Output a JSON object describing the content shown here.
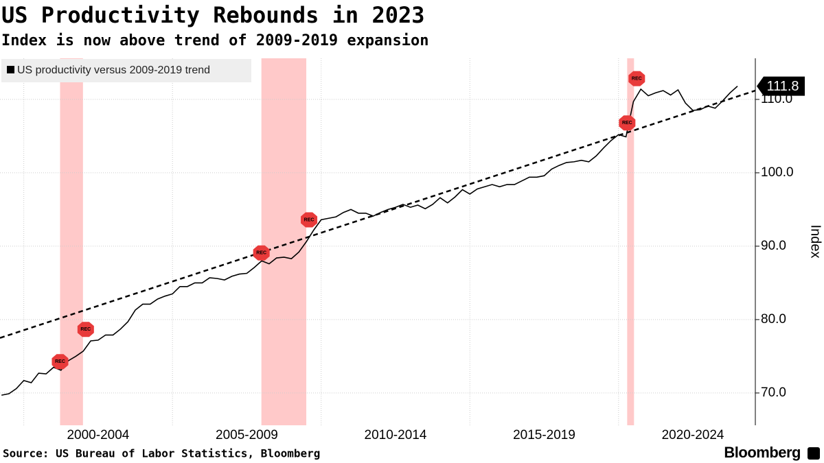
{
  "chart_data": {
    "type": "line",
    "title": "US Productivity Rebounds in 2023",
    "subtitle": "Index is now above trend of 2009-2019 expansion",
    "source": "Source: US Bureau of Labor Statistics, Bloomberg",
    "brand": "Bloomberg",
    "y_axis_label": "Index",
    "x": [
      1999.25,
      1999.5,
      1999.75,
      2000,
      2000.25,
      2000.5,
      2000.75,
      2001,
      2001.25,
      2001.5,
      2001.75,
      2002,
      2002.25,
      2002.5,
      2002.75,
      2003,
      2003.25,
      2003.5,
      2003.75,
      2004,
      2004.25,
      2004.5,
      2004.75,
      2005,
      2005.25,
      2005.5,
      2005.75,
      2006,
      2006.25,
      2006.5,
      2006.75,
      2007,
      2007.25,
      2007.5,
      2007.75,
      2008,
      2008.25,
      2008.5,
      2008.75,
      2009,
      2009.25,
      2009.5,
      2009.75,
      2010,
      2010.25,
      2010.5,
      2010.75,
      2011,
      2011.25,
      2011.5,
      2011.75,
      2012,
      2012.25,
      2012.5,
      2012.75,
      2013,
      2013.25,
      2013.5,
      2013.75,
      2014,
      2014.25,
      2014.5,
      2014.75,
      2015,
      2015.25,
      2015.5,
      2015.75,
      2016,
      2016.25,
      2016.5,
      2016.75,
      2017,
      2017.25,
      2017.5,
      2017.75,
      2018,
      2018.25,
      2018.5,
      2018.75,
      2019,
      2019.25,
      2019.5,
      2019.75,
      2020,
      2020.25,
      2020.5,
      2020.75,
      2021,
      2021.25,
      2021.5,
      2021.75,
      2022,
      2022.25,
      2022.5,
      2022.75,
      2023,
      2023.25,
      2023.5,
      2023.75,
      2024
    ],
    "series": [
      {
        "name": "US productivity versus 2009-2019 trend",
        "color": "#000000",
        "values": [
          69.7,
          69.9,
          70.6,
          71.7,
          71.4,
          72.7,
          72.6,
          73.5,
          73.1,
          74.4,
          75.0,
          75.7,
          77.1,
          77.2,
          77.9,
          77.9,
          78.7,
          79.7,
          81.3,
          82.1,
          82.1,
          82.8,
          83.2,
          83.5,
          84.5,
          84.5,
          85.0,
          85.0,
          85.7,
          85.6,
          85.4,
          85.9,
          86.2,
          86.3,
          87.1,
          88.0,
          87.6,
          88.4,
          88.5,
          88.3,
          89.2,
          90.6,
          92.2,
          93.6,
          93.8,
          94.0,
          94.6,
          95.0,
          94.5,
          94.5,
          94.1,
          94.6,
          95.0,
          95.3,
          95.7,
          95.3,
          95.6,
          95.1,
          95.7,
          96.6,
          95.9,
          96.7,
          97.7,
          97.1,
          97.8,
          98.1,
          98.4,
          98.1,
          98.4,
          98.4,
          98.9,
          99.4,
          99.4,
          99.6,
          100.5,
          101.0,
          101.4,
          101.5,
          101.7,
          101.5,
          102.3,
          103.4,
          104.4,
          105.2,
          104.9,
          109.7,
          111.4,
          110.5,
          110.9,
          111.2,
          110.6,
          111.3,
          109.5,
          108.5,
          108.6,
          109.1,
          108.8,
          109.8,
          110.9,
          111.8
        ]
      }
    ],
    "trend": {
      "x": [
        1999.2,
        2024.6
      ],
      "values": [
        77.5,
        111.2
      ],
      "color": "#000000"
    },
    "recessions": [
      {
        "start": 2001.22,
        "end": 2001.99,
        "label": "REC"
      },
      {
        "start": 2007.99,
        "end": 2009.5,
        "label": "REC"
      },
      {
        "start": 2020.29,
        "end": 2020.52,
        "label": "REC"
      }
    ],
    "recession_color": "#ffc9c9",
    "xlim": [
      1999.2,
      2024.6
    ],
    "xgrid": [
      2000,
      2005,
      2010,
      2015,
      2020
    ],
    "xticks": [
      {
        "value": 2002.5,
        "label": "2000-2004"
      },
      {
        "value": 2007.5,
        "label": "2005-2009"
      },
      {
        "value": 2012.5,
        "label": "2010-2014"
      },
      {
        "value": 2017.5,
        "label": "2015-2019"
      },
      {
        "value": 2022.5,
        "label": "2020-2024"
      }
    ],
    "ylim": [
      65.6,
      115.6
    ],
    "yticks": [
      {
        "value": 70,
        "label": "70.0"
      },
      {
        "value": 80,
        "label": "80.0"
      },
      {
        "value": 90,
        "label": "90.0"
      },
      {
        "value": 100,
        "label": "100.0"
      },
      {
        "value": 110,
        "label": "110.0"
      }
    ],
    "grid": true,
    "legend": "top-left"
  }
}
